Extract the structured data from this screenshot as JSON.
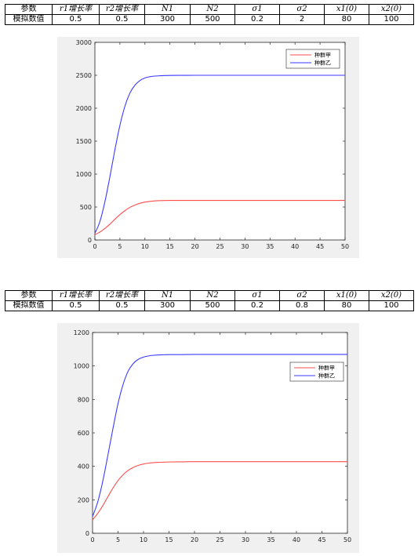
{
  "tables": [
    {
      "header": [
        "参数",
        "r1增长率",
        "r2增长率",
        "N1",
        "N2",
        "σ1",
        "σ2",
        "x1(0)",
        "x2(0)"
      ],
      "row_label": "模拟数值",
      "values": [
        "0.5",
        "0.5",
        "300",
        "500",
        "0.2",
        "2",
        "80",
        "100"
      ]
    },
    {
      "header": [
        "参数",
        "r1增长率",
        "r2增长率",
        "N1",
        "N2",
        "σ1",
        "σ2",
        "x1(0)",
        "x2(0)"
      ],
      "row_label": "模拟数值",
      "values": [
        "0.5",
        "0.5",
        "300",
        "500",
        "0.2",
        "0.8",
        "80",
        "100"
      ]
    }
  ],
  "colors": {
    "series1": "#ff4d4d",
    "series2": "#3a3aff",
    "figure_bg": "#f0f0f0"
  },
  "chart_data": [
    {
      "type": "line",
      "title": "",
      "xlabel": "",
      "ylabel": "",
      "xlim": [
        0,
        50
      ],
      "ylim": [
        0,
        3000
      ],
      "xticks": [
        0,
        5,
        10,
        15,
        20,
        25,
        30,
        35,
        40,
        45,
        50
      ],
      "yticks": [
        0,
        500,
        1000,
        1500,
        2000,
        2500,
        3000
      ],
      "grid": false,
      "legend": "top-right",
      "x": [
        0,
        1,
        2,
        3,
        4,
        5,
        6,
        7,
        8,
        9,
        10,
        11,
        12,
        13,
        14,
        15,
        17.5,
        20,
        25,
        30,
        35,
        40,
        45,
        50
      ],
      "series": [
        {
          "name": "种群甲",
          "values": [
            80,
            120,
            175,
            240,
            315,
            385,
            445,
            495,
            530,
            557,
            575,
            586,
            593,
            597,
            599,
            600,
            600,
            600,
            600,
            600,
            600,
            600,
            600,
            600
          ]
        },
        {
          "name": "种群乙",
          "values": [
            100,
            280,
            580,
            960,
            1370,
            1740,
            2030,
            2230,
            2350,
            2420,
            2460,
            2478,
            2488,
            2493,
            2496,
            2498,
            2499,
            2500,
            2500,
            2500,
            2500,
            2500,
            2500,
            2500
          ]
        }
      ]
    },
    {
      "type": "line",
      "title": "",
      "xlabel": "",
      "ylabel": "",
      "xlim": [
        0,
        50
      ],
      "ylim": [
        0,
        1200
      ],
      "xticks": [
        0,
        5,
        10,
        15,
        20,
        25,
        30,
        35,
        40,
        45,
        50
      ],
      "yticks": [
        0,
        200,
        400,
        600,
        800,
        1000,
        1200
      ],
      "grid": false,
      "legend": "top-right",
      "x": [
        0,
        1,
        2,
        3,
        4,
        5,
        6,
        7,
        8,
        9,
        10,
        11,
        12,
        13,
        14,
        15,
        17.5,
        20,
        25,
        30,
        35,
        40,
        45,
        50
      ],
      "series": [
        {
          "name": "种群甲",
          "values": [
            80,
            118,
            165,
            218,
            270,
            315,
            350,
            376,
            394,
            406,
            414,
            419,
            422,
            424,
            425,
            426,
            427,
            428,
            428,
            428,
            428,
            428,
            428,
            428
          ]
        },
        {
          "name": "种群乙",
          "values": [
            100,
            185,
            310,
            465,
            625,
            775,
            890,
            970,
            1015,
            1040,
            1053,
            1060,
            1064,
            1066,
            1067,
            1068,
            1068,
            1069,
            1069,
            1069,
            1069,
            1069,
            1069,
            1069
          ]
        }
      ]
    }
  ]
}
